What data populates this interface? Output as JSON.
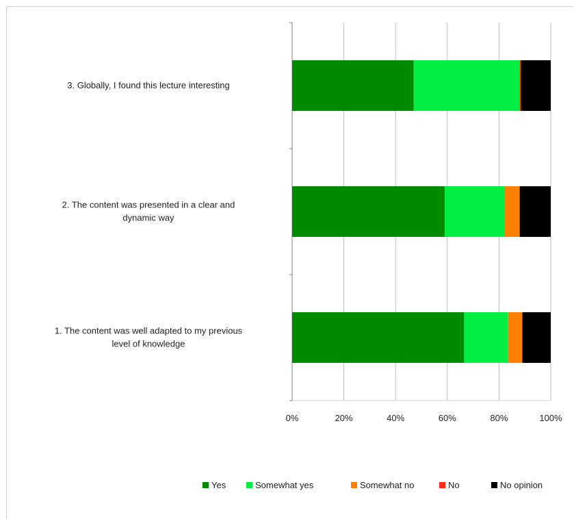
{
  "chart_data": {
    "type": "bar",
    "orientation": "horizontal",
    "stacked": true,
    "percent": true,
    "categories": [
      "1. The content was well adapted to my previous level of knowledge",
      "2. The content was presented in a clear and dynamic way",
      "3. Globally, I found this lecture interesting"
    ],
    "category_lines": [
      [
        "1. The content was well adapted to my previous",
        "level of knowledge"
      ],
      [
        "2. The content was presented in a clear and",
        "dynamic way"
      ],
      [
        "3. Globally, I found this lecture interesting"
      ]
    ],
    "series": [
      {
        "name": "Yes",
        "color": "#008a00",
        "values": [
          66.5,
          59,
          47
        ]
      },
      {
        "name": "Somewhat yes",
        "color": "#00ee44",
        "values": [
          17,
          23,
          41
        ]
      },
      {
        "name": "Somewhat no",
        "color": "#ff7f00",
        "values": [
          5.5,
          6,
          0
        ]
      },
      {
        "name": "No",
        "color": "#ff2a1a",
        "values": [
          0,
          0,
          0.5
        ]
      },
      {
        "name": "No opinion",
        "color": "#000000",
        "values": [
          11,
          12,
          11.5
        ]
      }
    ],
    "xlim": [
      0,
      100
    ],
    "xticks": [
      "0%",
      "20%",
      "40%",
      "60%",
      "80%",
      "100%"
    ],
    "xgrid": true,
    "legend_position": "bottom",
    "title": "",
    "xlabel": "",
    "ylabel": ""
  }
}
